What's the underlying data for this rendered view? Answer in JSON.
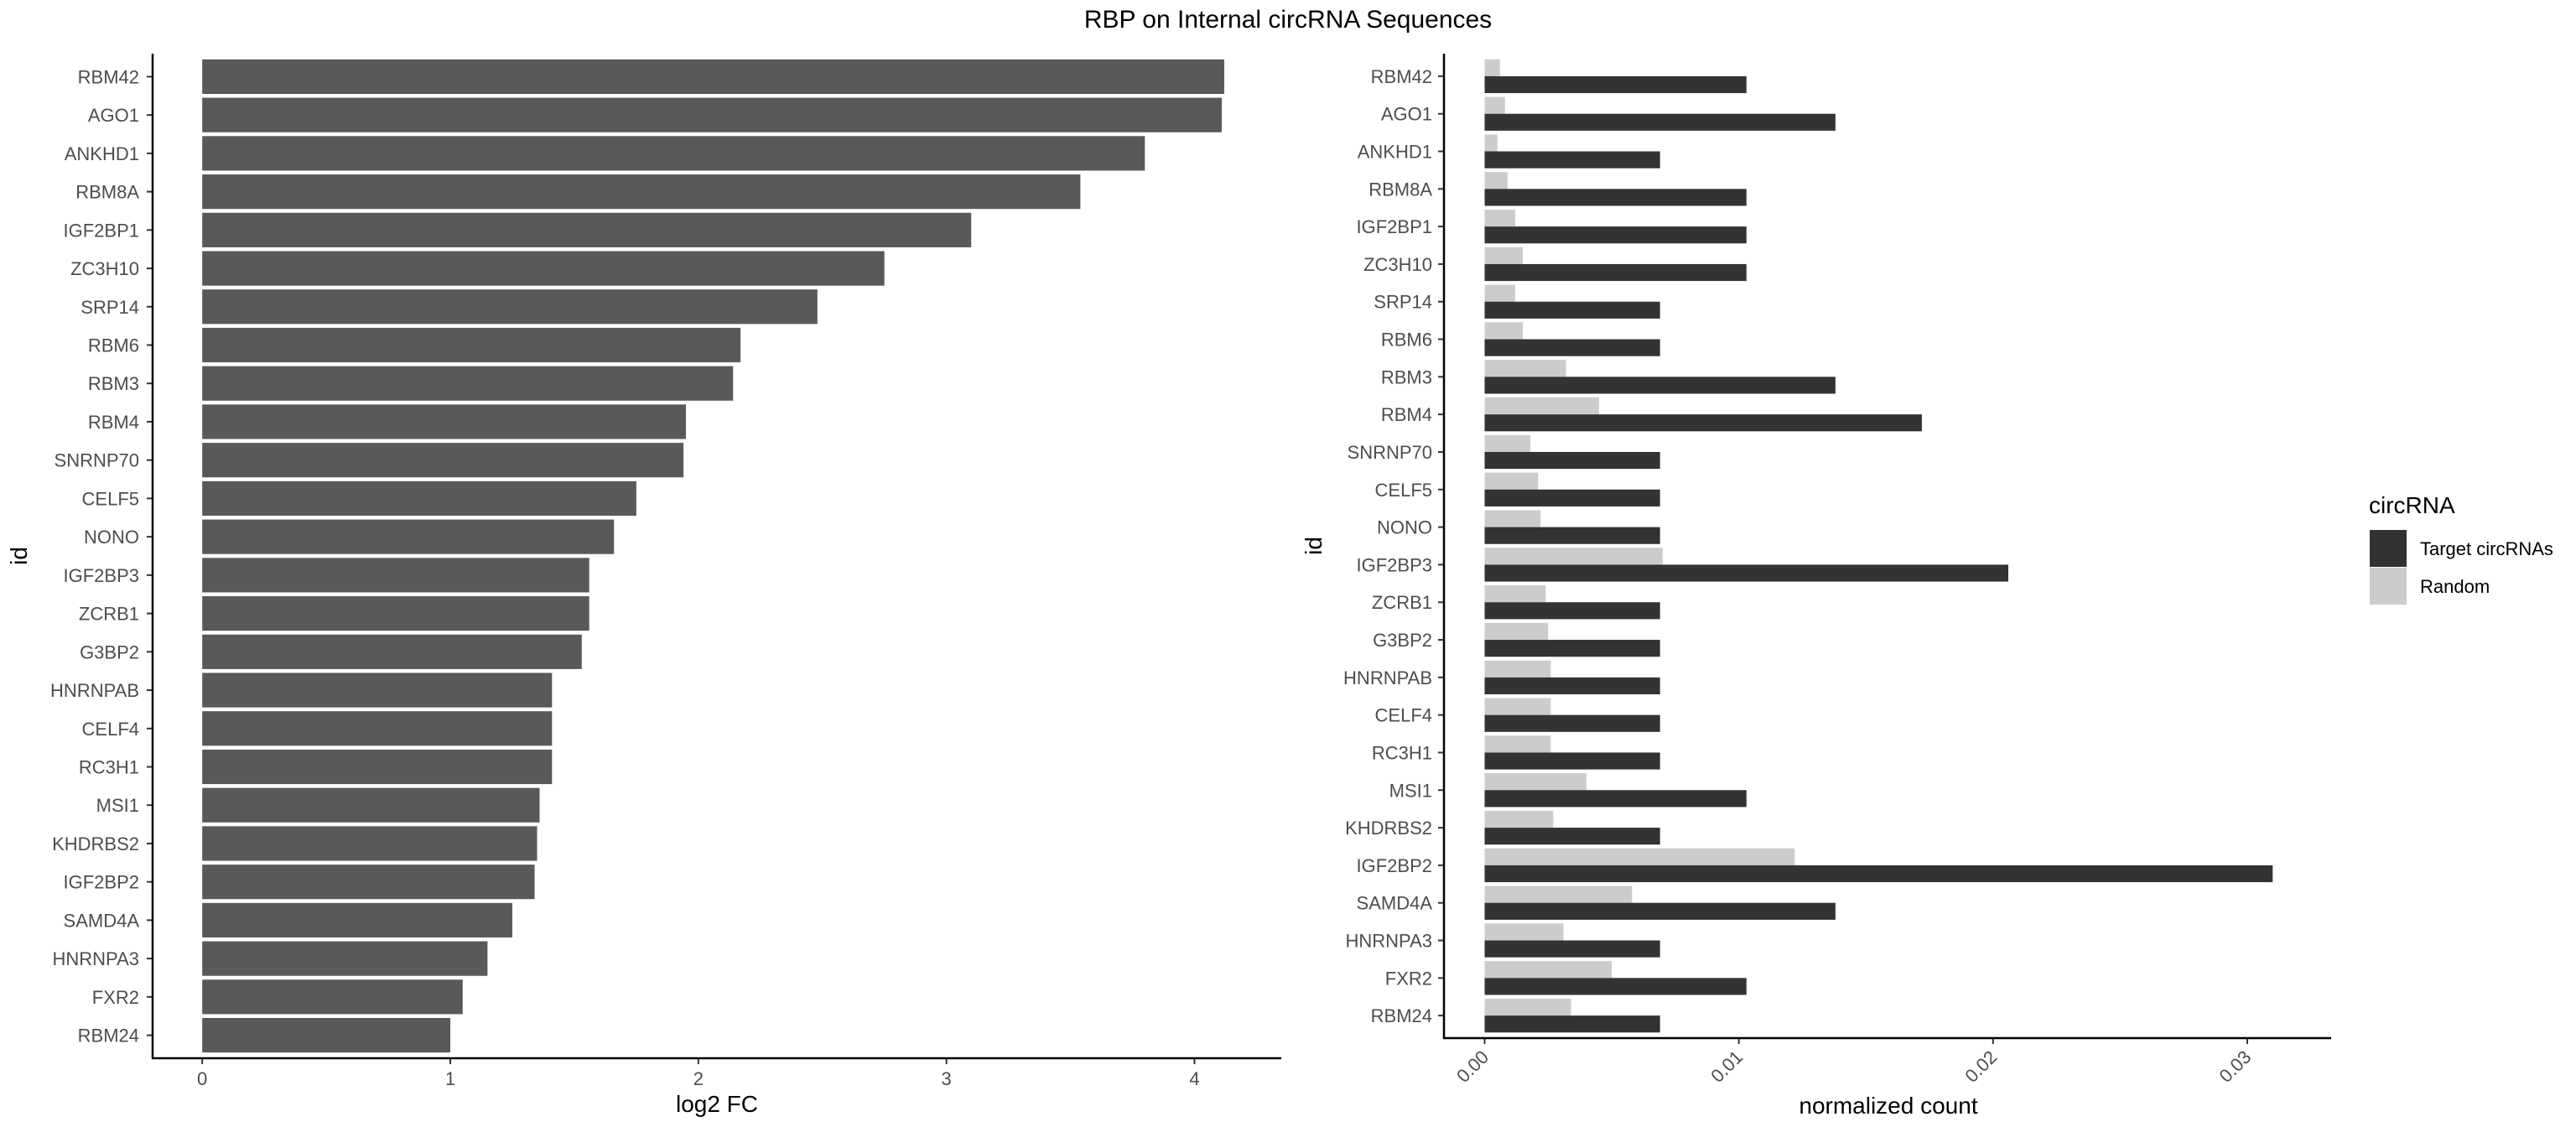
{
  "figure": {
    "title": "RBP on Internal circRNA Sequences"
  },
  "chart_data": [
    {
      "type": "bar",
      "orientation": "horizontal",
      "xlabel": "log2 FC",
      "ylabel": "id",
      "xlim": [
        -0.2,
        4.35
      ],
      "x_ticks": [
        0,
        1,
        2,
        3,
        4
      ],
      "bar_color": "#595959",
      "categories": [
        "RBM42",
        "AGO1",
        "ANKHD1",
        "RBM8A",
        "IGF2BP1",
        "ZC3H10",
        "SRP14",
        "RBM6",
        "RBM3",
        "RBM4",
        "SNRNP70",
        "CELF5",
        "NONO",
        "IGF2BP3",
        "ZCRB1",
        "G3BP2",
        "HNRNPAB",
        "CELF4",
        "RC3H1",
        "MSI1",
        "KHDRBS2",
        "IGF2BP2",
        "SAMD4A",
        "HNRNPA3",
        "FXR2",
        "RBM24"
      ],
      "values": [
        4.12,
        4.11,
        3.8,
        3.54,
        3.1,
        2.75,
        2.48,
        2.17,
        2.14,
        1.95,
        1.94,
        1.75,
        1.66,
        1.56,
        1.56,
        1.53,
        1.41,
        1.41,
        1.41,
        1.36,
        1.35,
        1.34,
        1.25,
        1.15,
        1.05,
        1.0
      ]
    },
    {
      "type": "bar",
      "orientation": "horizontal",
      "xlabel": "normalized count",
      "ylabel": "id",
      "xlim": [
        -0.0016,
        0.0333
      ],
      "x_ticks": [
        0.0,
        0.01,
        0.02,
        0.03
      ],
      "x_tick_labels": [
        "0.00",
        "0.01",
        "0.02",
        "0.03"
      ],
      "categories": [
        "RBM42",
        "AGO1",
        "ANKHD1",
        "RBM8A",
        "IGF2BP1",
        "ZC3H10",
        "SRP14",
        "RBM6",
        "RBM3",
        "RBM4",
        "SNRNP70",
        "CELF5",
        "NONO",
        "IGF2BP3",
        "ZCRB1",
        "G3BP2",
        "HNRNPAB",
        "CELF4",
        "RC3H1",
        "MSI1",
        "KHDRBS2",
        "IGF2BP2",
        "SAMD4A",
        "HNRNPA3",
        "FXR2",
        "RBM24"
      ],
      "legend": {
        "title": "circRNA",
        "position": "right"
      },
      "series": [
        {
          "name": "Target circRNAs",
          "color": "#333333",
          "values": [
            0.0103,
            0.0138,
            0.0069,
            0.0103,
            0.0103,
            0.0103,
            0.0069,
            0.0069,
            0.0138,
            0.0172,
            0.0069,
            0.0069,
            0.0069,
            0.0206,
            0.0069,
            0.0069,
            0.0069,
            0.0069,
            0.0069,
            0.0103,
            0.0069,
            0.031,
            0.0138,
            0.0069,
            0.0103,
            0.0069
          ]
        },
        {
          "name": "Random",
          "color": "#cccccc",
          "values": [
            0.0006,
            0.0008,
            0.0005,
            0.0009,
            0.0012,
            0.0015,
            0.0012,
            0.0015,
            0.0032,
            0.0045,
            0.0018,
            0.0021,
            0.0022,
            0.007,
            0.0024,
            0.0025,
            0.0026,
            0.0026,
            0.0026,
            0.004,
            0.0027,
            0.0122,
            0.0058,
            0.0031,
            0.005,
            0.0034
          ]
        }
      ]
    }
  ]
}
